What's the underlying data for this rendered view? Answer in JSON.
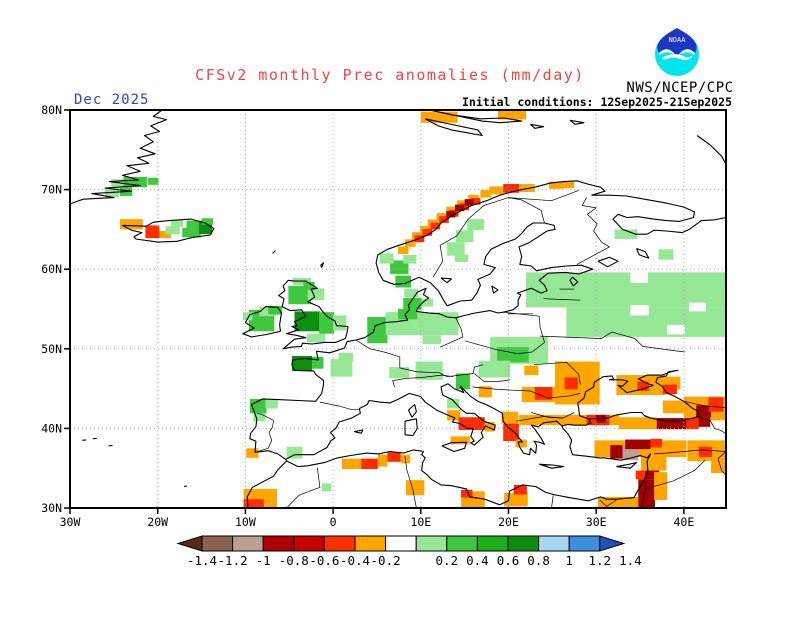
{
  "header": {
    "title": "CFSv2 monthly Prec anomalies (mm/day)",
    "agency": "NWS/NCEP/CPC",
    "date_label": "Dec 2025",
    "init_label": "Initial conditions: 12Sep2025-21Sep2025",
    "logo": "noaa-logo",
    "title_color": "#f24343",
    "date_color": "#2b3fd4"
  },
  "chart_data": {
    "type": "heatmap",
    "title": "CFSv2 monthly Prec anomalies (mm/day)",
    "units": "mm/day",
    "forecast_month": "Dec 2025",
    "initial_conditions": "12Sep2025-21Sep2025",
    "source": "NWS/NCEP/CPC",
    "projection": "equirectangular",
    "domain": {
      "lon": [
        -30,
        44.8
      ],
      "lat": [
        30,
        80
      ]
    },
    "grid": {
      "spacing_deg": 10,
      "style": "dotted",
      "color": "#aaaaaa"
    },
    "x_axis": {
      "ticks": [
        {
          "label": "30W",
          "lon": -30
        },
        {
          "label": "20W",
          "lon": -20
        },
        {
          "label": "10W",
          "lon": -10
        },
        {
          "label": "0",
          "lon": 0
        },
        {
          "label": "10E",
          "lon": 10
        },
        {
          "label": "20E",
          "lon": 20
        },
        {
          "label": "30E",
          "lon": 30
        },
        {
          "label": "40E",
          "lon": 40
        }
      ]
    },
    "y_axis": {
      "ticks": [
        {
          "label": "80N",
          "lat": 80
        },
        {
          "label": "70N",
          "lat": 70
        },
        {
          "label": "60N",
          "lat": 60
        },
        {
          "label": "50N",
          "lat": 50
        },
        {
          "label": "40N",
          "lat": 40
        },
        {
          "label": "30N",
          "lat": 30
        }
      ]
    },
    "palette": {
      "o": {
        "color": "#FFA500",
        "range": [
          -0.4,
          -0.2
        ]
      },
      "r": {
        "color": "#FF2C00",
        "range": [
          -0.6,
          -0.4
        ]
      },
      "dr": {
        "color": "#A00000",
        "range": [
          -1.0,
          -0.6
        ]
      },
      "tan": {
        "color": "#BE9E90",
        "range": [
          -1.2,
          -1.0
        ]
      },
      "g1": {
        "color": "#96E896",
        "range": [
          0.2,
          0.4
        ]
      },
      "g2": {
        "color": "#3FC83F",
        "range": [
          0.4,
          0.6
        ]
      },
      "g3": {
        "color": "#0E8E0E",
        "range": [
          0.8,
          1.0
        ]
      },
      "w": {
        "color": "#FFFFFF",
        "range": [
          -0.2,
          0.2
        ]
      }
    },
    "colorbar": {
      "labels": [
        "-1.4",
        "-1.2",
        "-1",
        "-0.8",
        "-0.6",
        "-0.4",
        "-0.2",
        "0.2",
        "0.4",
        "0.6",
        "0.8",
        "1",
        "1.2",
        "1.4"
      ],
      "cells": [
        {
          "from": -1.4,
          "to": -1.2,
          "color": "#8A6252"
        },
        {
          "from": -1.2,
          "to": -1.0,
          "color": "#BE9E90"
        },
        {
          "from": -1.0,
          "to": -0.8,
          "color": "#AE0000"
        },
        {
          "from": -0.8,
          "to": -0.6,
          "color": "#C80000"
        },
        {
          "from": -0.6,
          "to": -0.4,
          "color": "#FF3000"
        },
        {
          "from": -0.4,
          "to": -0.2,
          "color": "#FFA500"
        },
        {
          "from": -0.2,
          "to": 0.2,
          "color": "#FFFFFF"
        },
        {
          "from": 0.2,
          "to": 0.4,
          "color": "#96E896"
        },
        {
          "from": 0.4,
          "to": 0.6,
          "color": "#3FC83F"
        },
        {
          "from": 0.6,
          "to": 0.8,
          "color": "#1CAF1C"
        },
        {
          "from": 0.8,
          "to": 1.0,
          "color": "#0E8E0E"
        },
        {
          "from": 1.0,
          "to": 1.2,
          "color": "#A6D8F2"
        },
        {
          "from": 1.2,
          "to": 1.4,
          "color": "#3E8EDE"
        },
        {
          "from": 1.4,
          "to": null,
          "color": "#2050BE",
          "shape": "arrow-right"
        },
        {
          "from": null,
          "to": -1.4,
          "color": "#57291B",
          "shape": "arrow-left"
        }
      ]
    },
    "cells": [
      [
        "o",
        -24.3,
        65,
        2.6,
        1.3
      ],
      [
        "r",
        -21.4,
        63.9,
        1.6,
        1.6
      ],
      [
        "o",
        -19.8,
        63.9,
        1.3,
        0.9
      ],
      [
        "g1",
        -19.1,
        64.4,
        1.6,
        1.0
      ],
      [
        "g1",
        -18.5,
        65.3,
        1.4,
        0.9
      ],
      [
        "g2",
        -17.2,
        64.0,
        2.1,
        1.2
      ],
      [
        "g2",
        -16.7,
        65.1,
        1.9,
        1.0
      ],
      [
        "g3",
        -15.3,
        64.4,
        1.5,
        1.6
      ],
      [
        "g2",
        -15.0,
        65.6,
        1.3,
        0.8
      ],
      [
        "g1",
        -26.0,
        69.0,
        1.6,
        1.2
      ],
      [
        "g2",
        -24.3,
        69.2,
        1.4,
        1.1
      ],
      [
        "g1",
        -25.3,
        70.2,
        1.5,
        1.1
      ],
      [
        "g2",
        -23.9,
        70.3,
        2.7,
        1.3
      ],
      [
        "g2",
        -21.1,
        70.6,
        1.2,
        0.9
      ],
      [
        "o",
        10,
        78.4,
        4.2,
        1.4
      ],
      [
        "o",
        18.8,
        78.8,
        3.2,
        1.1
      ],
      [
        "o",
        7.4,
        61.9,
        1.2,
        0.95
      ],
      [
        "o",
        8.2,
        62.8,
        1.2,
        0.95
      ],
      [
        "o",
        9.0,
        63.7,
        1.2,
        0.95
      ],
      [
        "o",
        9.9,
        64.5,
        1.2,
        0.95
      ],
      [
        "o",
        10.8,
        65.3,
        1.2,
        0.95
      ],
      [
        "o",
        11.8,
        66.1,
        1.2,
        0.95
      ],
      [
        "o",
        12.9,
        66.9,
        1.2,
        0.95
      ],
      [
        "o",
        14.1,
        67.7,
        1.2,
        0.95
      ],
      [
        "o",
        15.4,
        68.4,
        1.2,
        0.95
      ],
      [
        "o",
        16.8,
        69.0,
        1.2,
        0.95
      ],
      [
        "r",
        9.3,
        63.4,
        1.1,
        0.85
      ],
      [
        "r",
        10.2,
        64.2,
        1.1,
        0.85
      ],
      [
        "r",
        11.1,
        65.0,
        1.1,
        0.85
      ],
      [
        "r",
        12.1,
        65.8,
        1.1,
        0.85
      ],
      [
        "r",
        13.2,
        66.6,
        1.1,
        0.85
      ],
      [
        "r",
        14.4,
        67.4,
        1.1,
        0.85
      ],
      [
        "r",
        15.7,
        68.1,
        1.1,
        0.85
      ],
      [
        "dr",
        12.9,
        66.5,
        1.05,
        0.8
      ],
      [
        "dr",
        13.9,
        67.3,
        1.05,
        0.8
      ],
      [
        "dr",
        15.0,
        68.0,
        1.05,
        0.8
      ],
      [
        "o",
        17.8,
        69.4,
        1.6,
        1.0
      ],
      [
        "r",
        19.4,
        69.6,
        1.8,
        1.1
      ],
      [
        "o",
        21.2,
        69.7,
        1.8,
        1.0
      ],
      [
        "o",
        24.6,
        70.1,
        1.7,
        0.9
      ],
      [
        "o",
        26.3,
        70.2,
        1.2,
        0.8
      ],
      [
        "g2",
        -5.1,
        55.6,
        2.6,
        2.3
      ],
      [
        "g1",
        -2.9,
        56.1,
        1.9,
        1.5
      ],
      [
        "g1",
        -4.6,
        58.0,
        2.1,
        0.9
      ],
      [
        "g2",
        -3.4,
        57.4,
        1.3,
        1.0
      ],
      [
        "g3",
        -4.4,
        52.2,
        2.9,
        2.5
      ],
      [
        "g2",
        -1.6,
        51.9,
        1.7,
        2.7
      ],
      [
        "g1",
        0.0,
        52.3,
        1.5,
        1.9
      ],
      [
        "g1",
        -3.0,
        50.8,
        2.1,
        1.1
      ],
      [
        "g2",
        -9.6,
        52.2,
        2.9,
        2.7
      ],
      [
        "g1",
        -8.4,
        54.1,
        1.9,
        1.2
      ],
      [
        "g2",
        -7.4,
        54.3,
        1.6,
        1.1
      ],
      [
        "g1",
        -10.3,
        53.6,
        1.1,
        1.0
      ],
      [
        "g3",
        -4.7,
        47.2,
        2.3,
        1.9
      ],
      [
        "g2",
        -2.4,
        47.5,
        1.3,
        1.5
      ],
      [
        "g1",
        -0.3,
        46.5,
        2.5,
        2.2
      ],
      [
        "g1",
        0.6,
        48.4,
        1.7,
        1.1
      ],
      [
        "g2",
        -9.5,
        41.9,
        1.9,
        1.8
      ],
      [
        "g1",
        -9.1,
        40.9,
        1.4,
        1.0
      ],
      [
        "g1",
        -7.7,
        42.5,
        1.4,
        1.2
      ],
      [
        "g1",
        -5.3,
        36.2,
        1.8,
        1.5
      ],
      [
        "g2",
        6.5,
        59.4,
        2.1,
        1.7
      ],
      [
        "g1",
        5.3,
        60.7,
        1.6,
        1.3
      ],
      [
        "g1",
        8.0,
        60.7,
        1.5,
        1.1
      ],
      [
        "g2",
        7.1,
        57.7,
        1.8,
        1.5
      ],
      [
        "g2",
        8.0,
        54.9,
        2.1,
        1.5
      ],
      [
        "g1",
        10.1,
        55.3,
        1.3,
        1.0
      ],
      [
        "g1",
        8.1,
        56.5,
        1.6,
        1.0
      ],
      [
        "g2",
        3.9,
        50.7,
        2.3,
        3.3
      ],
      [
        "g1",
        6.0,
        51.7,
        8.3,
        2.9
      ],
      [
        "g2",
        7.4,
        53.7,
        2.2,
        1.3
      ],
      [
        "g1",
        10.2,
        50.6,
        2.1,
        1.1
      ],
      [
        "g1",
        15.3,
        64.9,
        1.9,
        1.4
      ],
      [
        "g1",
        14.0,
        63.4,
        2.0,
        1.5
      ],
      [
        "g1",
        13.0,
        61.7,
        2.0,
        1.7
      ],
      [
        "g1",
        13.9,
        60.9,
        1.5,
        0.9
      ],
      [
        "g1",
        17.9,
        48.1,
        6.6,
        3.4
      ],
      [
        "g2",
        18.7,
        48.3,
        3.6,
        1.9
      ],
      [
        "g1",
        6.4,
        46.3,
        2.3,
        1.4
      ],
      [
        "g1",
        9.4,
        46.1,
        3.1,
        2.3
      ],
      [
        "g2",
        14.0,
        44.9,
        1.6,
        2.0
      ],
      [
        "g1",
        16.6,
        46.4,
        3.6,
        2.1
      ],
      [
        "g1",
        13.0,
        42.5,
        1.4,
        1.2
      ],
      [
        "g1",
        22.0,
        55.2,
        22.8,
        4.4
      ],
      [
        "g1",
        26.6,
        51.5,
        18.2,
        3.7
      ],
      [
        "w",
        33.9,
        58.3,
        2.0,
        1.3
      ],
      [
        "w",
        33.9,
        54.2,
        2.1,
        1.3
      ],
      [
        "w",
        38.1,
        51.8,
        2.0,
        1.2
      ],
      [
        "w",
        40.6,
        54.7,
        1.9,
        1.1
      ],
      [
        "g1",
        32.1,
        63.8,
        2.6,
        1.2
      ],
      [
        "g1",
        37.1,
        61.2,
        1.7,
        1.3
      ],
      [
        "o",
        -9.9,
        36.3,
        1.4,
        1.2
      ],
      [
        "o",
        -10.2,
        30,
        3.8,
        2.4
      ],
      [
        "r",
        -10.2,
        30,
        2.3,
        1.1
      ],
      [
        "g1",
        -1.3,
        32.1,
        1.1,
        1.0
      ],
      [
        "o",
        1.0,
        34.9,
        2.2,
        1.3
      ],
      [
        "r",
        3.2,
        34.9,
        1.9,
        1.3
      ],
      [
        "o",
        5.1,
        35.2,
        1.1,
        1.5
      ],
      [
        "r",
        6.2,
        35.8,
        1.5,
        1.2
      ],
      [
        "o",
        7.7,
        35.6,
        1.1,
        1.1
      ],
      [
        "o",
        8.3,
        31.6,
        2.1,
        1.9
      ],
      [
        "o",
        14.6,
        30,
        2.7,
        2.1
      ],
      [
        "r",
        14.6,
        31.3,
        1.3,
        1.0
      ],
      [
        "o",
        19.5,
        30.2,
        2.7,
        1.7
      ],
      [
        "r",
        20.6,
        31.7,
        1.5,
        1.2
      ],
      [
        "o",
        30.2,
        30,
        4.6,
        1.4
      ],
      [
        "dr",
        34.8,
        30,
        1.9,
        3.6
      ],
      [
        "r",
        34.5,
        33.6,
        1.4,
        1.1
      ],
      [
        "dr",
        35.6,
        33.6,
        1.6,
        2.3
      ],
      [
        "o",
        36.6,
        31.0,
        1.5,
        3.5
      ],
      [
        "o",
        35.1,
        34.7,
        2.9,
        1.8
      ],
      [
        "o",
        13.0,
        41.0,
        1.5,
        1.3
      ],
      [
        "r",
        14.3,
        39.8,
        3.0,
        1.6
      ],
      [
        "o",
        17.3,
        39.6,
        1.1,
        1.2
      ],
      [
        "o",
        13.4,
        38.0,
        2.2,
        1.0
      ],
      [
        "o",
        16.6,
        43.9,
        1.5,
        1.4
      ],
      [
        "o",
        19.2,
        40.6,
        1.9,
        1.5
      ],
      [
        "r",
        19.4,
        38.4,
        1.8,
        2.2
      ],
      [
        "o",
        20.8,
        37.6,
        1.3,
        1.0
      ],
      [
        "o",
        21.2,
        40.4,
        11.4,
        1.3
      ],
      [
        "r",
        28.9,
        40.4,
        2.6,
        1.3
      ],
      [
        "dr",
        30.0,
        40.7,
        1.1,
        1.0
      ],
      [
        "o",
        25.3,
        43.0,
        5.1,
        5.4
      ],
      [
        "o",
        21.5,
        43.3,
        3.8,
        1.9
      ],
      [
        "o",
        21.8,
        46.7,
        1.6,
        1.2
      ],
      [
        "r",
        23.0,
        43.6,
        2.0,
        1.6
      ],
      [
        "r",
        26.4,
        44.9,
        1.5,
        1.5
      ],
      [
        "o",
        32.3,
        44.2,
        5.5,
        2.5
      ],
      [
        "r",
        34.7,
        44.7,
        1.3,
        1.2
      ],
      [
        "o",
        36.0,
        44.9,
        3.6,
        1.6
      ],
      [
        "r",
        37.6,
        44.3,
        1.6,
        1.2
      ],
      [
        "o",
        40.0,
        41.0,
        4.8,
        3.0
      ],
      [
        "dr",
        41.4,
        41.4,
        1.7,
        1.5
      ],
      [
        "r",
        42.8,
        42.1,
        1.7,
        1.8
      ],
      [
        "dr",
        41.0,
        40.2,
        2.0,
        1.2
      ],
      [
        "o",
        37.6,
        41.9,
        2.6,
        1.6
      ],
      [
        "o",
        32.6,
        39.9,
        4.3,
        1.5
      ],
      [
        "dr",
        36.9,
        39.9,
        3.4,
        1.4
      ],
      [
        "r",
        40.3,
        39.9,
        1.4,
        1.4
      ],
      [
        "o",
        29.8,
        36.4,
        10.5,
        2.1
      ],
      [
        "dr",
        31.6,
        36.2,
        1.4,
        1.7
      ],
      [
        "tan",
        33.0,
        36.0,
        1.8,
        1.6
      ],
      [
        "dr",
        33.3,
        37.4,
        2.9,
        1.2
      ],
      [
        "r",
        36.2,
        37.6,
        1.3,
        1.1
      ],
      [
        "o",
        40.4,
        35.9,
        4.4,
        2.6
      ],
      [
        "r",
        41.7,
        36.4,
        1.5,
        1.3
      ],
      [
        "o",
        43.1,
        34.4,
        1.7,
        1.6
      ]
    ]
  }
}
